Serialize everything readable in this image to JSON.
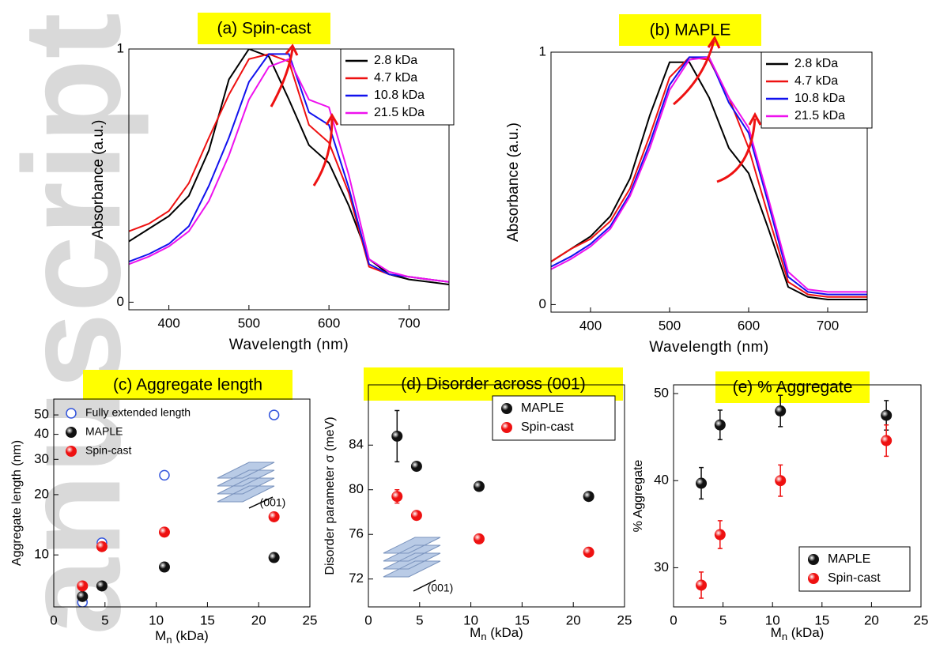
{
  "watermark": "anuscript",
  "chart_data": [
    {
      "type": "line",
      "title": "(a) Spin-cast",
      "x_label": "Wavelength (nm)",
      "y_label": "Absorbance (a.u.)",
      "x": [
        350,
        375,
        400,
        425,
        450,
        475,
        500,
        525,
        550,
        575,
        600,
        625,
        650,
        675,
        700,
        725,
        750
      ],
      "series": [
        {
          "name": "2.8 kDa",
          "color": "#000000",
          "values": [
            0.24,
            0.29,
            0.34,
            0.42,
            0.6,
            0.88,
            1.0,
            0.97,
            0.8,
            0.62,
            0.55,
            0.38,
            0.17,
            0.11,
            0.09,
            0.08,
            0.07
          ]
        },
        {
          "name": "4.7 kDa",
          "color": "#ee1111",
          "values": [
            0.28,
            0.31,
            0.36,
            0.47,
            0.65,
            0.82,
            0.96,
            0.98,
            0.95,
            0.7,
            0.63,
            0.43,
            0.14,
            0.11,
            0.1,
            0.09,
            0.08
          ]
        },
        {
          "name": "10.8 kDa",
          "color": "#1111ee",
          "values": [
            0.16,
            0.19,
            0.23,
            0.3,
            0.46,
            0.65,
            0.87,
            0.98,
            0.98,
            0.75,
            0.7,
            0.45,
            0.15,
            0.11,
            0.1,
            0.09,
            0.08
          ]
        },
        {
          "name": "21.5 kDa",
          "color": "#ee11ee",
          "values": [
            0.15,
            0.18,
            0.22,
            0.28,
            0.4,
            0.58,
            0.8,
            0.93,
            0.96,
            0.8,
            0.77,
            0.5,
            0.17,
            0.12,
            0.1,
            0.09,
            0.08
          ]
        }
      ],
      "xlim": [
        350,
        750
      ],
      "xticks": [
        400,
        500,
        600,
        700
      ],
      "ylim": [
        -0.03,
        1.0
      ],
      "yticks": [
        0,
        1
      ],
      "legend": "upper right",
      "legend_frame": true
    },
    {
      "type": "line",
      "title": "(b) MAPLE",
      "x_label": "Wavelength (nm)",
      "y_label": "Absorbance (a.u.)",
      "x": [
        350,
        375,
        400,
        425,
        450,
        475,
        500,
        525,
        550,
        575,
        600,
        625,
        650,
        675,
        700,
        725,
        750
      ],
      "series": [
        {
          "name": "2.8 kDa",
          "color": "#000000",
          "values": [
            0.17,
            0.22,
            0.27,
            0.35,
            0.5,
            0.75,
            0.96,
            0.96,
            0.82,
            0.62,
            0.52,
            0.3,
            0.07,
            0.03,
            0.02,
            0.02,
            0.02
          ]
        },
        {
          "name": "4.7 kDa",
          "color": "#ee1111",
          "values": [
            0.17,
            0.22,
            0.26,
            0.33,
            0.46,
            0.67,
            0.9,
            0.98,
            0.97,
            0.82,
            0.62,
            0.35,
            0.09,
            0.04,
            0.03,
            0.03,
            0.03
          ]
        },
        {
          "name": "10.8 kDa",
          "color": "#1111ee",
          "values": [
            0.15,
            0.19,
            0.24,
            0.31,
            0.44,
            0.64,
            0.87,
            0.98,
            0.98,
            0.8,
            0.68,
            0.4,
            0.11,
            0.05,
            0.04,
            0.04,
            0.04
          ]
        },
        {
          "name": "21.5 kDa",
          "color": "#ee11ee",
          "values": [
            0.14,
            0.18,
            0.23,
            0.3,
            0.43,
            0.62,
            0.85,
            0.97,
            0.98,
            0.82,
            0.7,
            0.42,
            0.13,
            0.06,
            0.05,
            0.05,
            0.05
          ]
        }
      ],
      "xlim": [
        350,
        750
      ],
      "xticks": [
        400,
        500,
        600,
        700
      ],
      "ylim": [
        -0.03,
        1.0
      ],
      "yticks": [
        0,
        1
      ],
      "legend": "upper right",
      "legend_frame": true
    },
    {
      "type": "scatter",
      "title": "(c) Aggregate length",
      "x_label": [
        "M",
        "n",
        " (kDa)"
      ],
      "y_label": "Aggregate length (nm)",
      "annotation": "(001)",
      "series": [
        {
          "name": "Fully extended length",
          "color": "#3355dd",
          "marker": "open",
          "x": [
            2.8,
            4.7,
            10.8,
            21.5
          ],
          "values": [
            5.8,
            11.5,
            25,
            50
          ]
        },
        {
          "name": "MAPLE",
          "color": "#111111",
          "marker": "filled",
          "x": [
            2.8,
            4.7,
            10.8,
            21.5
          ],
          "values": [
            6.2,
            7,
            8.7,
            9.7
          ]
        },
        {
          "name": "Spin-cast",
          "color": "#ee1111",
          "marker": "filled",
          "x": [
            2.8,
            4.7,
            10.8,
            21.5
          ],
          "values": [
            7,
            11,
            13,
            15.5
          ]
        }
      ],
      "xlim": [
        0,
        25
      ],
      "xticks": [
        0,
        5,
        10,
        15,
        20,
        25
      ],
      "ylim": [
        5.5,
        60
      ],
      "yticks": [
        10,
        20,
        30,
        40,
        50
      ],
      "yscale": "log",
      "legend": "upper left",
      "legend_frame": false
    },
    {
      "type": "scatter",
      "title": "(d) Disorder across (001)",
      "x_label": [
        "M",
        "n",
        " (kDa)"
      ],
      "y_label": "Disorder parameter σ (meV)",
      "annotation": "(001)",
      "series": [
        {
          "name": "MAPLE",
          "color": "#111111",
          "marker": "filled",
          "x": [
            2.8,
            4.7,
            10.8,
            21.5
          ],
          "values": [
            84.8,
            82.1,
            80.3,
            79.4
          ],
          "errors": [
            2.3,
            0.3,
            0.3,
            0.3
          ]
        },
        {
          "name": "Spin-cast",
          "color": "#ee1111",
          "marker": "filled",
          "x": [
            2.8,
            4.7,
            10.8,
            21.5
          ],
          "values": [
            79.4,
            77.7,
            75.6,
            74.4
          ],
          "errors": [
            0.6,
            0.3,
            0.3,
            0.3
          ]
        }
      ],
      "xlim": [
        0,
        25
      ],
      "xticks": [
        0,
        5,
        10,
        15,
        20,
        25
      ],
      "ylim": [
        69.5,
        89.4
      ],
      "yticks": [
        72,
        76,
        80,
        84
      ],
      "legend": "upper right",
      "legend_frame": true
    },
    {
      "type": "scatter",
      "title": "(e) % Aggregate",
      "x_label": [
        "M",
        "n",
        " (kDa)"
      ],
      "y_label": "% Aggregate",
      "series": [
        {
          "name": "MAPLE",
          "color": "#111111",
          "marker": "filled",
          "x": [
            2.8,
            4.7,
            10.8,
            21.5
          ],
          "values": [
            39.7,
            46.4,
            48,
            47.5
          ],
          "errors": [
            1.8,
            1.7,
            1.8,
            1.7
          ]
        },
        {
          "name": "Spin-cast",
          "color": "#ee1111",
          "marker": "filled",
          "x": [
            2.8,
            4.7,
            10.8,
            21.5
          ],
          "values": [
            28,
            33.8,
            40,
            44.6
          ],
          "errors": [
            1.5,
            1.6,
            1.8,
            1.8
          ]
        }
      ],
      "xlim": [
        0,
        25
      ],
      "xticks": [
        0,
        5,
        10,
        15,
        20,
        25
      ],
      "ylim": [
        25.5,
        51
      ],
      "yticks": [
        30,
        40,
        50
      ],
      "legend": "lower right",
      "legend_frame": true
    }
  ]
}
